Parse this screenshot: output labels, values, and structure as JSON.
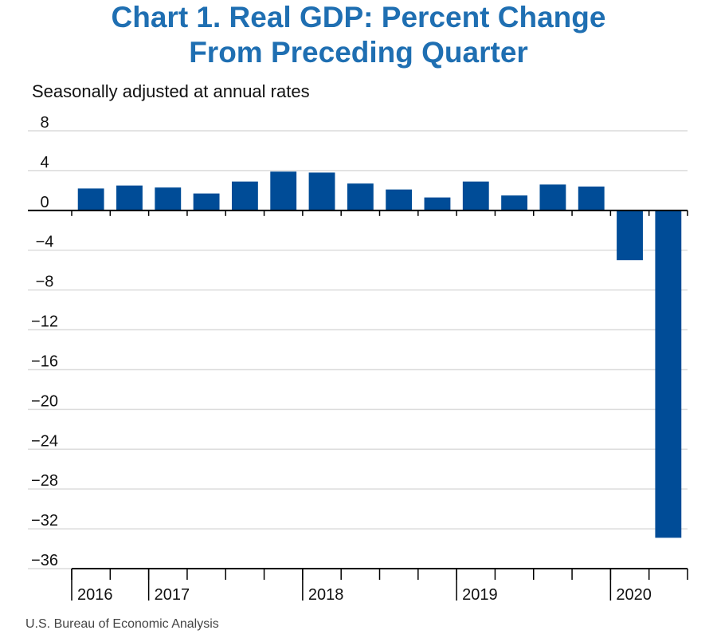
{
  "chart_data": {
    "type": "bar",
    "title_line1": "Chart 1. Real GDP: Percent Change",
    "title_line2": "From Preceding Quarter",
    "subtitle": "Seasonally adjusted at annual rates",
    "source": "U.S. Bureau of Economic Analysis",
    "categories": [
      "2016 Q3",
      "2016 Q4",
      "2017 Q1",
      "2017 Q2",
      "2017 Q3",
      "2017 Q4",
      "2018 Q1",
      "2018 Q2",
      "2018 Q3",
      "2018 Q4",
      "2019 Q1",
      "2019 Q2",
      "2019 Q3",
      "2019 Q4",
      "2020 Q1",
      "2020 Q2"
    ],
    "values": [
      2.2,
      2.5,
      2.3,
      1.7,
      2.9,
      3.9,
      3.8,
      2.7,
      2.1,
      1.3,
      2.9,
      1.5,
      2.6,
      2.4,
      -5.0,
      -32.9
    ],
    "ylim": [
      -36,
      8
    ],
    "yticks": [
      8,
      4,
      0,
      -4,
      -8,
      -12,
      -16,
      -20,
      -24,
      -28,
      -32,
      -36
    ],
    "ytick_labels": [
      "8",
      "4",
      "0",
      "−4",
      "−8",
      "−12",
      "−16",
      "−20",
      "−24",
      "−28",
      "−32",
      "−36"
    ],
    "years": [
      "2016",
      "2017",
      "2018",
      "2019",
      "2020"
    ],
    "year_quarter_counts": [
      2,
      4,
      4,
      4,
      2
    ],
    "bar_color": "#004c97",
    "grid": true
  }
}
